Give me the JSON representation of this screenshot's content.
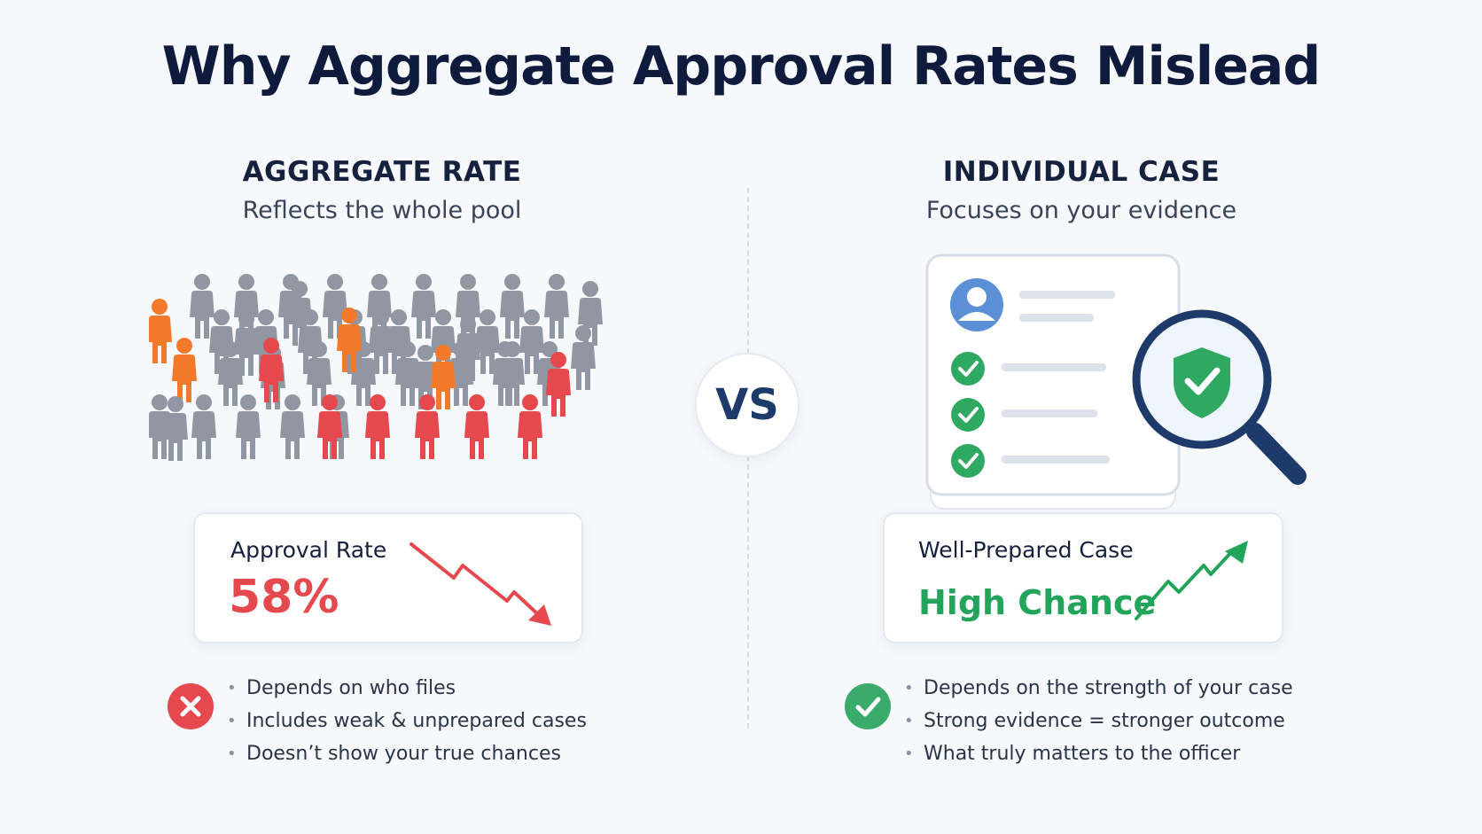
{
  "title": "Why Aggregate Approval Rates Mislead",
  "left": {
    "heading": "AGGREGATE RATE",
    "subheading": "Reflects the whole pool",
    "card": {
      "label": "Approval Rate",
      "value": "58%",
      "trend": "down",
      "trend_icon": "trend-down-arrow-icon"
    },
    "status_icon": "x-circle-icon",
    "bullets": [
      "Depends on who files",
      "Includes weak & unprepared cases",
      "Doesn’t show your true chances"
    ]
  },
  "vs_label": "VS",
  "right": {
    "heading": "INDIVIDUAL CASE",
    "subheading": "Focuses on your evidence",
    "card": {
      "label": "Well-Prepared Case",
      "value": "High Chance",
      "trend": "up",
      "trend_icon": "trend-up-arrow-icon"
    },
    "status_icon": "check-circle-icon",
    "bullets": [
      "Depends on the strength of your case",
      "Strong evidence = stronger outcome",
      "What truly matters to the officer"
    ]
  },
  "colors": {
    "title": "#0f1b3d",
    "person_gray": "#9097a2",
    "person_orange": "#f47a2b",
    "person_red": "#e5484d",
    "red": "#e5484d",
    "green": "#22a55b",
    "navy": "#1e3a6b",
    "avatar_blue": "#5b8fd6"
  },
  "crowd": {
    "gray": 39,
    "orange": 4,
    "red": 9
  }
}
